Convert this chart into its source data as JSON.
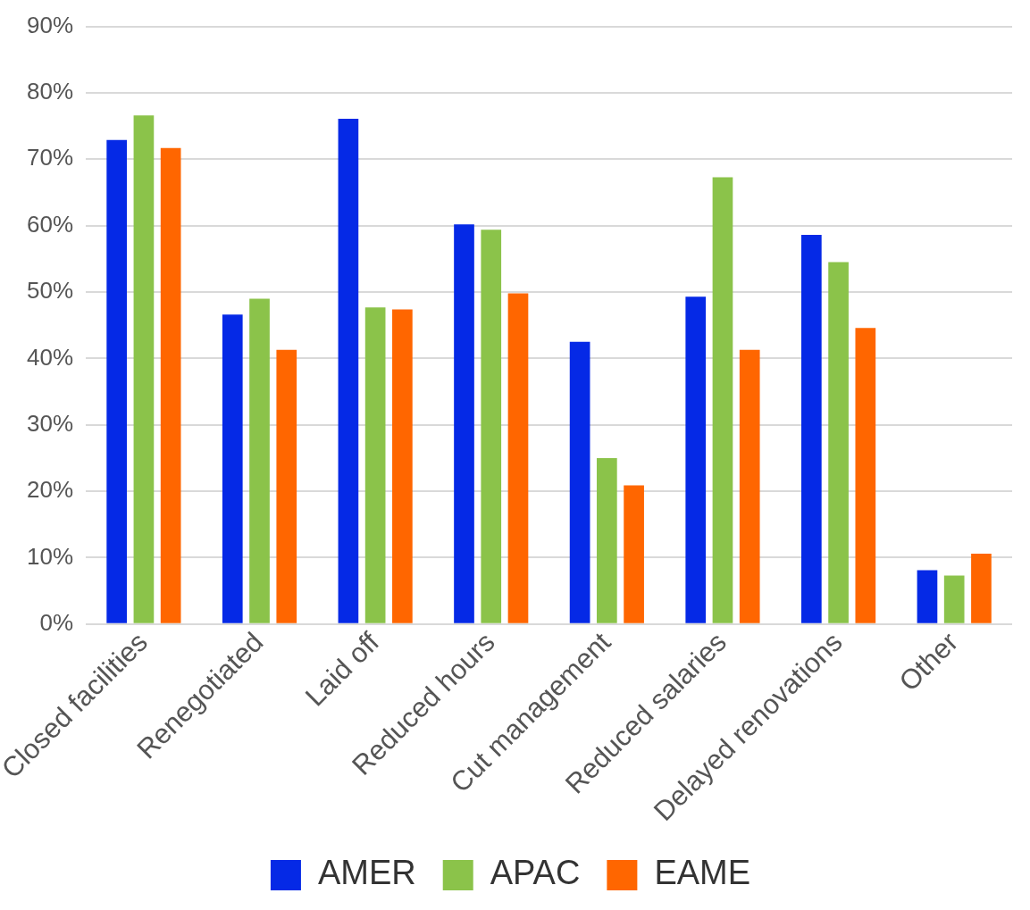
{
  "chart_data": {
    "type": "bar",
    "categories": [
      "Closed facilities",
      "Renegotiated",
      "Laid off",
      "Reduced hours",
      "Cut management",
      "Reduced salaries",
      "Delayed renovations",
      "Other"
    ],
    "series": [
      {
        "name": "AMER",
        "color": "#0529e6",
        "values": [
          72.9,
          46.6,
          76.1,
          60.2,
          42.5,
          49.3,
          58.6,
          8.1
        ]
      },
      {
        "name": "APAC",
        "color": "#8bc34a",
        "values": [
          76.6,
          49.0,
          47.7,
          59.4,
          25.0,
          67.3,
          54.5,
          7.3
        ]
      },
      {
        "name": "EAME",
        "color": "#ff6600",
        "values": [
          71.7,
          41.3,
          47.4,
          49.8,
          20.9,
          41.3,
          44.6,
          10.6
        ]
      }
    ],
    "ylim": [
      0,
      90
    ],
    "yticks": [
      {
        "value": 0,
        "label": "0%"
      },
      {
        "value": 10,
        "label": "10%"
      },
      {
        "value": 20,
        "label": "20%"
      },
      {
        "value": 30,
        "label": "30%"
      },
      {
        "value": 40,
        "label": "40%"
      },
      {
        "value": 50,
        "label": "50%"
      },
      {
        "value": 60,
        "label": "60%"
      },
      {
        "value": 70,
        "label": "70%"
      },
      {
        "value": 80,
        "label": "80%"
      },
      {
        "value": 90,
        "label": "90%"
      }
    ],
    "grid": "y",
    "legend": "bottom"
  }
}
